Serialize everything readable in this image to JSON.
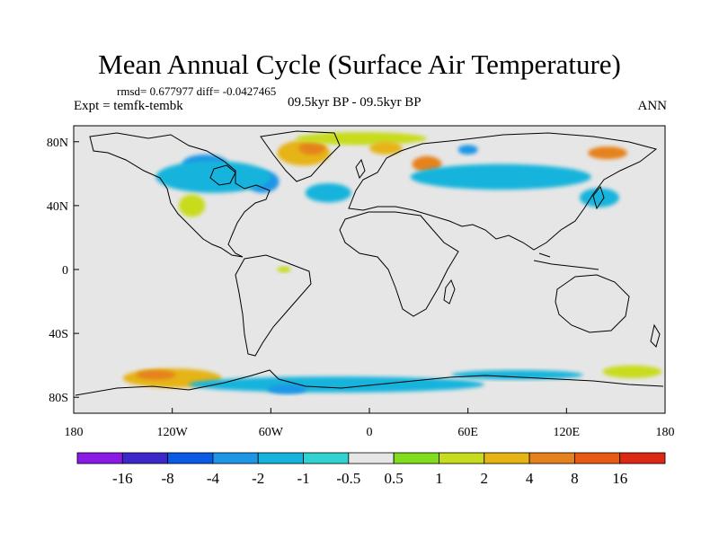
{
  "header": {
    "title": "Mean Annual Cycle (Surface Air Temperature)",
    "stats": "rmsd= 0.677977 diff= -0.0427465",
    "experiment": "Expt = temfk-tembk",
    "period": "09.5kyr BP - 09.5kyr BP",
    "season": "ANN"
  },
  "axes": {
    "lon_ticks": [
      {
        "value": -180,
        "label": "180"
      },
      {
        "value": -120,
        "label": "120W"
      },
      {
        "value": -60,
        "label": "60W"
      },
      {
        "value": 0,
        "label": "0"
      },
      {
        "value": 60,
        "label": "60E"
      },
      {
        "value": 120,
        "label": "120E"
      },
      {
        "value": 180,
        "label": "180"
      }
    ],
    "lat_ticks": [
      {
        "value": 80,
        "label": "80N"
      },
      {
        "value": 40,
        "label": "40N"
      },
      {
        "value": 0,
        "label": "0"
      },
      {
        "value": -40,
        "label": "40S"
      },
      {
        "value": -80,
        "label": "80S"
      }
    ],
    "lon_range": [
      -180,
      180
    ],
    "lat_range": [
      -90,
      90
    ]
  },
  "colorbar": {
    "labels": [
      "-16",
      "-8",
      "-4",
      "-2",
      "-1",
      "-0.5",
      "0.5",
      "1",
      "2",
      "4",
      "8",
      "16"
    ],
    "colors": [
      "#8a1ae6",
      "#3c28c8",
      "#0a5ae6",
      "#1e96e6",
      "#14b4dc",
      "#32d2d2",
      "#e6e6e6",
      "#82dc1e",
      "#c8dc1e",
      "#e6b414",
      "#e6821e",
      "#e65a14",
      "#dc2814"
    ]
  },
  "regions": [
    {
      "name": "arctic-canada",
      "level": "-2",
      "lon": -100,
      "lat": 66,
      "rx": 14,
      "ry": 6
    },
    {
      "name": "hudson-bay",
      "level": "-4",
      "lon": -80,
      "lat": 57,
      "rx": 10,
      "ry": 6
    },
    {
      "name": "labrador",
      "level": "-2",
      "lon": -65,
      "lat": 55,
      "rx": 10,
      "ry": 7
    },
    {
      "name": "canada-band",
      "level": "-1",
      "lon": -95,
      "lat": 58,
      "rx": 35,
      "ry": 10
    },
    {
      "name": "greenland",
      "level": "2",
      "lon": -40,
      "lat": 73,
      "rx": 16,
      "ry": 8
    },
    {
      "name": "greenland-core",
      "level": "4",
      "lon": -35,
      "lat": 76,
      "rx": 8,
      "ry": 4
    },
    {
      "name": "north-atlantic",
      "level": "-1",
      "lon": -25,
      "lat": 48,
      "rx": 14,
      "ry": 6
    },
    {
      "name": "great-plains",
      "level": "1",
      "lon": -108,
      "lat": 40,
      "rx": 8,
      "ry": 7
    },
    {
      "name": "arctic-ocean",
      "level": "1",
      "lon": -5,
      "lat": 82,
      "rx": 40,
      "ry": 4
    },
    {
      "name": "norway-sea",
      "level": "2",
      "lon": 10,
      "lat": 76,
      "rx": 10,
      "ry": 4
    },
    {
      "name": "scandinavia",
      "level": "4",
      "lon": 35,
      "lat": 66,
      "rx": 9,
      "ry": 5
    },
    {
      "name": "eurasia-band",
      "level": "-1",
      "lon": 80,
      "lat": 58,
      "rx": 55,
      "ry": 8
    },
    {
      "name": "barents",
      "level": "-2",
      "lon": 60,
      "lat": 75,
      "rx": 6,
      "ry": 3
    },
    {
      "name": "east-siberia",
      "level": "4",
      "lon": 145,
      "lat": 73,
      "rx": 12,
      "ry": 4
    },
    {
      "name": "east-asia",
      "level": "-1",
      "lon": 140,
      "lat": 45,
      "rx": 12,
      "ry": 6
    },
    {
      "name": "amazon",
      "level": "1",
      "lon": -52,
      "lat": 0,
      "rx": 4,
      "ry": 2
    },
    {
      "name": "southern-ocean-pac",
      "level": "2",
      "lon": -120,
      "lat": -68,
      "rx": 30,
      "ry": 6
    },
    {
      "name": "ross-core",
      "level": "4",
      "lon": -130,
      "lat": -66,
      "rx": 12,
      "ry": 3
    },
    {
      "name": "antarctic-coast",
      "level": "-1",
      "lon": -20,
      "lat": -72,
      "rx": 90,
      "ry": 5
    },
    {
      "name": "weddell",
      "level": "-2",
      "lon": -50,
      "lat": -75,
      "rx": 12,
      "ry": 3
    },
    {
      "name": "indian-ocean-south",
      "level": "-1",
      "lon": 90,
      "lat": -66,
      "rx": 40,
      "ry": 3
    },
    {
      "name": "pacific-south-east",
      "level": "1",
      "lon": 160,
      "lat": -64,
      "rx": 18,
      "ry": 4
    }
  ]
}
